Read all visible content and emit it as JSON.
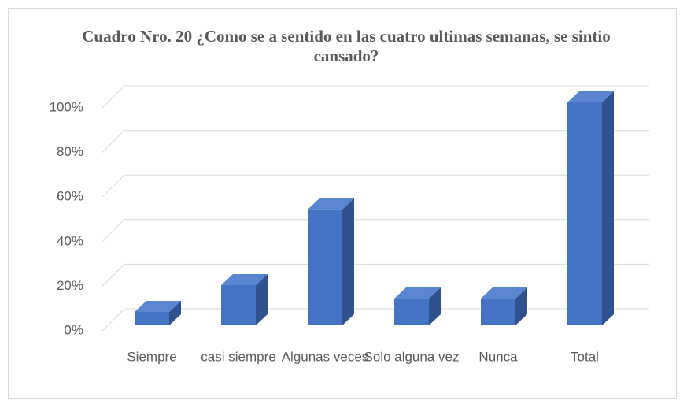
{
  "chart_data": {
    "type": "bar3d",
    "title": "Cuadro Nro. 20 ¿Como se a sentido en las cuatro ultimas semanas, se sintio cansado?",
    "categories": [
      "Siempre",
      "casi siempre",
      "Algunas veces",
      "Solo alguna vez",
      "Nunca",
      "Total"
    ],
    "values": [
      6,
      18,
      52,
      12,
      12,
      100
    ],
    "color": "#4472c4",
    "ylim": [
      0,
      100
    ],
    "yticks": [
      {
        "value": 0,
        "label": "0%"
      },
      {
        "value": 20,
        "label": "20%"
      },
      {
        "value": 40,
        "label": "40%"
      },
      {
        "value": 60,
        "label": "60%"
      },
      {
        "value": 80,
        "label": "80%"
      },
      {
        "value": 100,
        "label": "100%"
      }
    ],
    "grid": true
  }
}
